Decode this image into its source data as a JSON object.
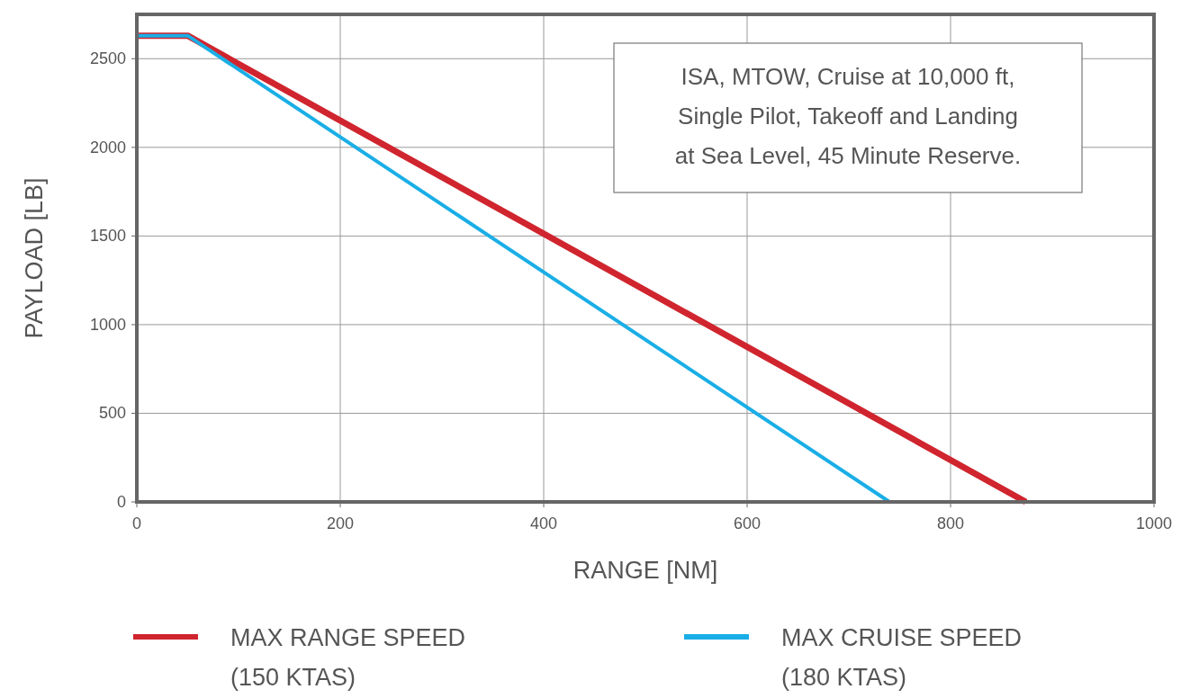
{
  "chart_data": {
    "type": "line",
    "xlabel": "RANGE [NM]",
    "ylabel": "PAYLOAD [LB]",
    "xlim": [
      0,
      1000
    ],
    "xticks": [
      0,
      200,
      400,
      600,
      800,
      1000
    ],
    "ylim": [
      0,
      2750
    ],
    "yticks": [
      0,
      500,
      1000,
      1500,
      2000,
      2500
    ],
    "grid": true,
    "legend": "bottom",
    "marker": "none",
    "line_style": "solid",
    "annotations": [
      "ISA, MTOW, Cruise at 10,000 ft, Single Pilot, Takeoff and Landing at Sea Level, 45 Minute Reserve."
    ],
    "series": [
      {
        "name": "MAX RANGE SPEED (150 KTAS)",
        "color": "#d0252e",
        "x": [
          0,
          50,
          874
        ],
        "values": [
          2630,
          2630,
          0
        ]
      },
      {
        "name": "MAX CRUISE SPEED (180 KTAS)",
        "color": "#1aaee6",
        "x": [
          0,
          50,
          740
        ],
        "values": [
          2630,
          2630,
          0
        ]
      }
    ]
  }
}
